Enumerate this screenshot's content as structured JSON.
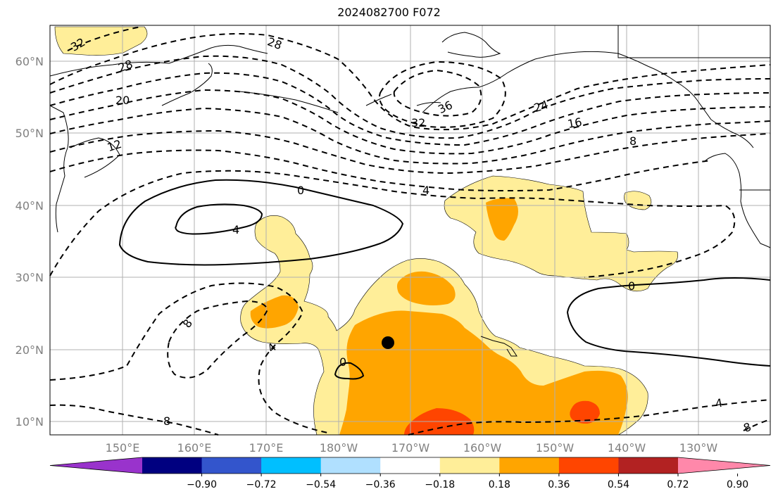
{
  "title": "2024082700 F072",
  "latitude_labels": [
    "60°N",
    "50°N",
    "40°N",
    "30°N",
    "20°N",
    "10°N"
  ],
  "longitude_labels": [
    "150°E",
    "160°E",
    "170°E",
    "180°W",
    "170°W",
    "160°W",
    "150°W",
    "140°W",
    "130°W"
  ],
  "colorbar": {
    "tick_labels": [
      "−0.90",
      "−0.72",
      "−0.54",
      "−0.36",
      "−0.18",
      "0.18",
      "0.36",
      "0.54",
      "0.72",
      "0.90"
    ],
    "colors": [
      "#9933cc",
      "#000080",
      "#3355cc",
      "#00bfff",
      "#b0e0ff",
      "#ffffff",
      "#ffee99",
      "#ffa500",
      "#ff4500",
      "#b22222",
      "#ff88aa"
    ]
  },
  "contour_labels": [
    "32",
    "28",
    "28",
    "20",
    "12",
    "36",
    "32",
    "24",
    "16",
    "8",
    "0",
    "4",
    "4",
    "8",
    "4",
    "0",
    "0",
    "4",
    "8",
    "8"
  ],
  "marker": {
    "name": "storm-center",
    "lat": 20.8,
    "lon": -173.5,
    "color": "#000000"
  },
  "colors": {
    "grid": "#b0b0b0",
    "axis_label": "#808080",
    "contour": "#000000"
  }
}
